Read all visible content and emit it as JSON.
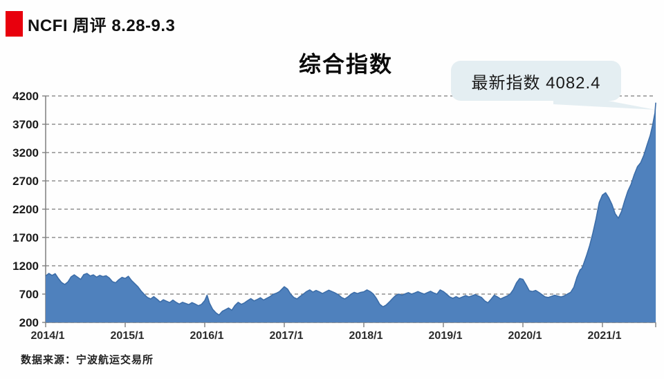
{
  "header": {
    "title": "NCFI 周评 8.28-9.3"
  },
  "callout": {
    "text": "最新指数 4082.4"
  },
  "footer": {
    "source": "数据来源：宁波航运交易所"
  },
  "colors": {
    "accent_red": "#e8000d",
    "area_fill": "#4f81bd",
    "area_stroke": "#3c6da8",
    "gridline": "#8f8f8f",
    "axis": "#7f7f7f",
    "bubble_bg": "#e4eef2",
    "label_text": "#1a1a1a"
  },
  "chart_data": {
    "type": "area",
    "title": "综合指数",
    "xlabel": "",
    "ylabel": "",
    "ylim": [
      200,
      4200
    ],
    "y_tick_step": 500,
    "grid": "dashed-horizontal",
    "legend_position": "none",
    "annotation": {
      "label": "最新指数",
      "value": 4082.4
    },
    "y_ticks": [
      {
        "label": "4200",
        "value": 4200
      },
      {
        "label": "3700",
        "value": 3700
      },
      {
        "label": "3200",
        "value": 3200
      },
      {
        "label": "2700",
        "value": 2700
      },
      {
        "label": "2200",
        "value": 2200
      },
      {
        "label": "1700",
        "value": 1700
      },
      {
        "label": "1200",
        "value": 1200
      },
      {
        "label": "700",
        "value": 700
      },
      {
        "label": "200",
        "value": 200
      }
    ],
    "x_ticks": [
      {
        "label": "2014/1",
        "year": 2014
      },
      {
        "label": "2015/1",
        "year": 2015
      },
      {
        "label": "2016/1",
        "year": 2016
      },
      {
        "label": "2017/1",
        "year": 2017
      },
      {
        "label": "2018/1",
        "year": 2018
      },
      {
        "label": "2019/1",
        "year": 2019
      },
      {
        "label": "2020/1",
        "year": 2020
      },
      {
        "label": "2021/1",
        "year": 2021
      }
    ],
    "series": [
      {
        "name": "NCFI综合指数",
        "points": [
          [
            2014.0,
            1020
          ],
          [
            2014.04,
            1065
          ],
          [
            2014.08,
            1030
          ],
          [
            2014.12,
            1060
          ],
          [
            2014.16,
            975
          ],
          [
            2014.2,
            905
          ],
          [
            2014.24,
            870
          ],
          [
            2014.28,
            915
          ],
          [
            2014.32,
            1005
          ],
          [
            2014.36,
            1040
          ],
          [
            2014.4,
            1000
          ],
          [
            2014.44,
            960
          ],
          [
            2014.48,
            1045
          ],
          [
            2014.52,
            1065
          ],
          [
            2014.56,
            1020
          ],
          [
            2014.6,
            1040
          ],
          [
            2014.64,
            1000
          ],
          [
            2014.68,
            1030
          ],
          [
            2014.72,
            1010
          ],
          [
            2014.76,
            1025
          ],
          [
            2014.8,
            985
          ],
          [
            2014.84,
            920
          ],
          [
            2014.88,
            900
          ],
          [
            2014.92,
            955
          ],
          [
            2014.96,
            995
          ],
          [
            2015.0,
            975
          ],
          [
            2015.04,
            1015
          ],
          [
            2015.08,
            940
          ],
          [
            2015.12,
            885
          ],
          [
            2015.16,
            830
          ],
          [
            2015.2,
            755
          ],
          [
            2015.24,
            695
          ],
          [
            2015.28,
            640
          ],
          [
            2015.32,
            615
          ],
          [
            2015.36,
            655
          ],
          [
            2015.4,
            610
          ],
          [
            2015.44,
            560
          ],
          [
            2015.48,
            600
          ],
          [
            2015.52,
            575
          ],
          [
            2015.56,
            550
          ],
          [
            2015.6,
            595
          ],
          [
            2015.64,
            555
          ],
          [
            2015.68,
            525
          ],
          [
            2015.72,
            555
          ],
          [
            2015.76,
            535
          ],
          [
            2015.8,
            515
          ],
          [
            2015.84,
            550
          ],
          [
            2015.88,
            525
          ],
          [
            2015.92,
            495
          ],
          [
            2015.96,
            520
          ],
          [
            2016.0,
            585
          ],
          [
            2016.03,
            680
          ],
          [
            2016.06,
            540
          ],
          [
            2016.1,
            430
          ],
          [
            2016.14,
            370
          ],
          [
            2016.18,
            330
          ],
          [
            2016.22,
            395
          ],
          [
            2016.26,
            425
          ],
          [
            2016.3,
            455
          ],
          [
            2016.34,
            415
          ],
          [
            2016.38,
            500
          ],
          [
            2016.42,
            555
          ],
          [
            2016.46,
            520
          ],
          [
            2016.5,
            545
          ],
          [
            2016.54,
            585
          ],
          [
            2016.58,
            620
          ],
          [
            2016.62,
            580
          ],
          [
            2016.66,
            605
          ],
          [
            2016.7,
            635
          ],
          [
            2016.74,
            595
          ],
          [
            2016.78,
            625
          ],
          [
            2016.82,
            655
          ],
          [
            2016.86,
            695
          ],
          [
            2016.9,
            715
          ],
          [
            2016.94,
            745
          ],
          [
            2017.0,
            830
          ],
          [
            2017.04,
            790
          ],
          [
            2017.08,
            700
          ],
          [
            2017.12,
            640
          ],
          [
            2017.16,
            615
          ],
          [
            2017.2,
            660
          ],
          [
            2017.24,
            700
          ],
          [
            2017.28,
            745
          ],
          [
            2017.32,
            775
          ],
          [
            2017.36,
            735
          ],
          [
            2017.4,
            765
          ],
          [
            2017.44,
            740
          ],
          [
            2017.48,
            710
          ],
          [
            2017.52,
            740
          ],
          [
            2017.56,
            770
          ],
          [
            2017.6,
            745
          ],
          [
            2017.64,
            720
          ],
          [
            2017.68,
            690
          ],
          [
            2017.72,
            640
          ],
          [
            2017.76,
            615
          ],
          [
            2017.8,
            650
          ],
          [
            2017.84,
            700
          ],
          [
            2017.88,
            730
          ],
          [
            2017.92,
            710
          ],
          [
            2017.96,
            730
          ],
          [
            2018.0,
            740
          ],
          [
            2018.04,
            775
          ],
          [
            2018.08,
            745
          ],
          [
            2018.12,
            700
          ],
          [
            2018.16,
            620
          ],
          [
            2018.2,
            520
          ],
          [
            2018.24,
            475
          ],
          [
            2018.28,
            505
          ],
          [
            2018.32,
            560
          ],
          [
            2018.36,
            620
          ],
          [
            2018.4,
            675
          ],
          [
            2018.44,
            700
          ],
          [
            2018.48,
            680
          ],
          [
            2018.52,
            705
          ],
          [
            2018.56,
            725
          ],
          [
            2018.6,
            700
          ],
          [
            2018.64,
            720
          ],
          [
            2018.68,
            745
          ],
          [
            2018.72,
            720
          ],
          [
            2018.76,
            700
          ],
          [
            2018.8,
            725
          ],
          [
            2018.84,
            750
          ],
          [
            2018.88,
            720
          ],
          [
            2018.92,
            700
          ],
          [
            2018.96,
            775
          ],
          [
            2019.0,
            745
          ],
          [
            2019.04,
            700
          ],
          [
            2019.08,
            650
          ],
          [
            2019.12,
            625
          ],
          [
            2019.16,
            655
          ],
          [
            2019.2,
            625
          ],
          [
            2019.24,
            650
          ],
          [
            2019.28,
            675
          ],
          [
            2019.32,
            650
          ],
          [
            2019.36,
            670
          ],
          [
            2019.4,
            690
          ],
          [
            2019.44,
            665
          ],
          [
            2019.48,
            640
          ],
          [
            2019.52,
            580
          ],
          [
            2019.56,
            545
          ],
          [
            2019.6,
            610
          ],
          [
            2019.64,
            680
          ],
          [
            2019.68,
            650
          ],
          [
            2019.72,
            615
          ],
          [
            2019.76,
            640
          ],
          [
            2019.8,
            665
          ],
          [
            2019.84,
            700
          ],
          [
            2019.88,
            780
          ],
          [
            2019.92,
            900
          ],
          [
            2019.96,
            975
          ],
          [
            2020.0,
            960
          ],
          [
            2020.04,
            865
          ],
          [
            2020.08,
            760
          ],
          [
            2020.12,
            745
          ],
          [
            2020.16,
            765
          ],
          [
            2020.2,
            730
          ],
          [
            2020.24,
            690
          ],
          [
            2020.28,
            650
          ],
          [
            2020.32,
            640
          ],
          [
            2020.36,
            660
          ],
          [
            2020.4,
            680
          ],
          [
            2020.44,
            665
          ],
          [
            2020.48,
            650
          ],
          [
            2020.52,
            670
          ],
          [
            2020.56,
            700
          ],
          [
            2020.6,
            730
          ],
          [
            2020.64,
            820
          ],
          [
            2020.68,
            1000
          ],
          [
            2020.72,
            1130
          ],
          [
            2020.74,
            1150
          ],
          [
            2020.76,
            1220
          ],
          [
            2020.8,
            1380
          ],
          [
            2020.84,
            1560
          ],
          [
            2020.88,
            1780
          ],
          [
            2020.92,
            2030
          ],
          [
            2020.96,
            2320
          ],
          [
            2021.0,
            2450
          ],
          [
            2021.04,
            2490
          ],
          [
            2021.08,
            2400
          ],
          [
            2021.12,
            2280
          ],
          [
            2021.16,
            2120
          ],
          [
            2021.2,
            2040
          ],
          [
            2021.24,
            2160
          ],
          [
            2021.28,
            2350
          ],
          [
            2021.32,
            2520
          ],
          [
            2021.36,
            2640
          ],
          [
            2021.4,
            2810
          ],
          [
            2021.44,
            2950
          ],
          [
            2021.48,
            3020
          ],
          [
            2021.52,
            3150
          ],
          [
            2021.56,
            3330
          ],
          [
            2021.6,
            3500
          ],
          [
            2021.63,
            3680
          ],
          [
            2021.66,
            3900
          ],
          [
            2021.67,
            4082
          ]
        ]
      }
    ]
  }
}
